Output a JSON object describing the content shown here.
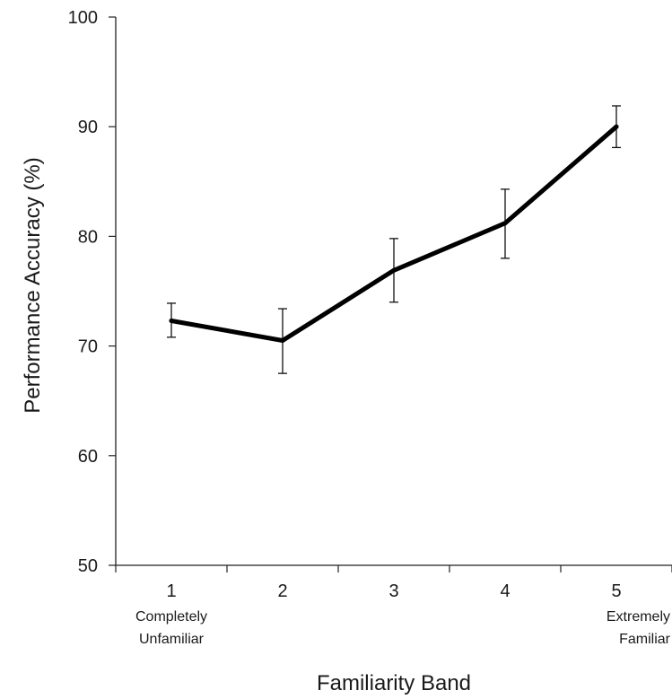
{
  "chart_data": {
    "type": "line",
    "title": "",
    "xlabel": "Familiarity Band",
    "ylabel": "Performance Accuracy (%)",
    "ylim": [
      50,
      100
    ],
    "yticks": [
      50,
      60,
      70,
      80,
      90,
      100
    ],
    "categories": [
      "1",
      "2",
      "3",
      "4",
      "5"
    ],
    "category_sublabels": [
      [
        "Completely",
        "Unfamiliar"
      ],
      [],
      [],
      [],
      [
        "Extremely",
        "Familiar"
      ]
    ],
    "series": [
      {
        "values": [
          72.3,
          70.5,
          76.9,
          81.2,
          90.0
        ],
        "error_low": [
          70.8,
          67.5,
          74.0,
          78.0,
          88.1
        ],
        "error_high": [
          73.9,
          73.4,
          79.8,
          84.3,
          91.9
        ]
      }
    ],
    "grid": false,
    "legend": "none",
    "colors": {
      "line": "#000000",
      "axis": "#222222",
      "text": "#1a1a1a"
    }
  }
}
